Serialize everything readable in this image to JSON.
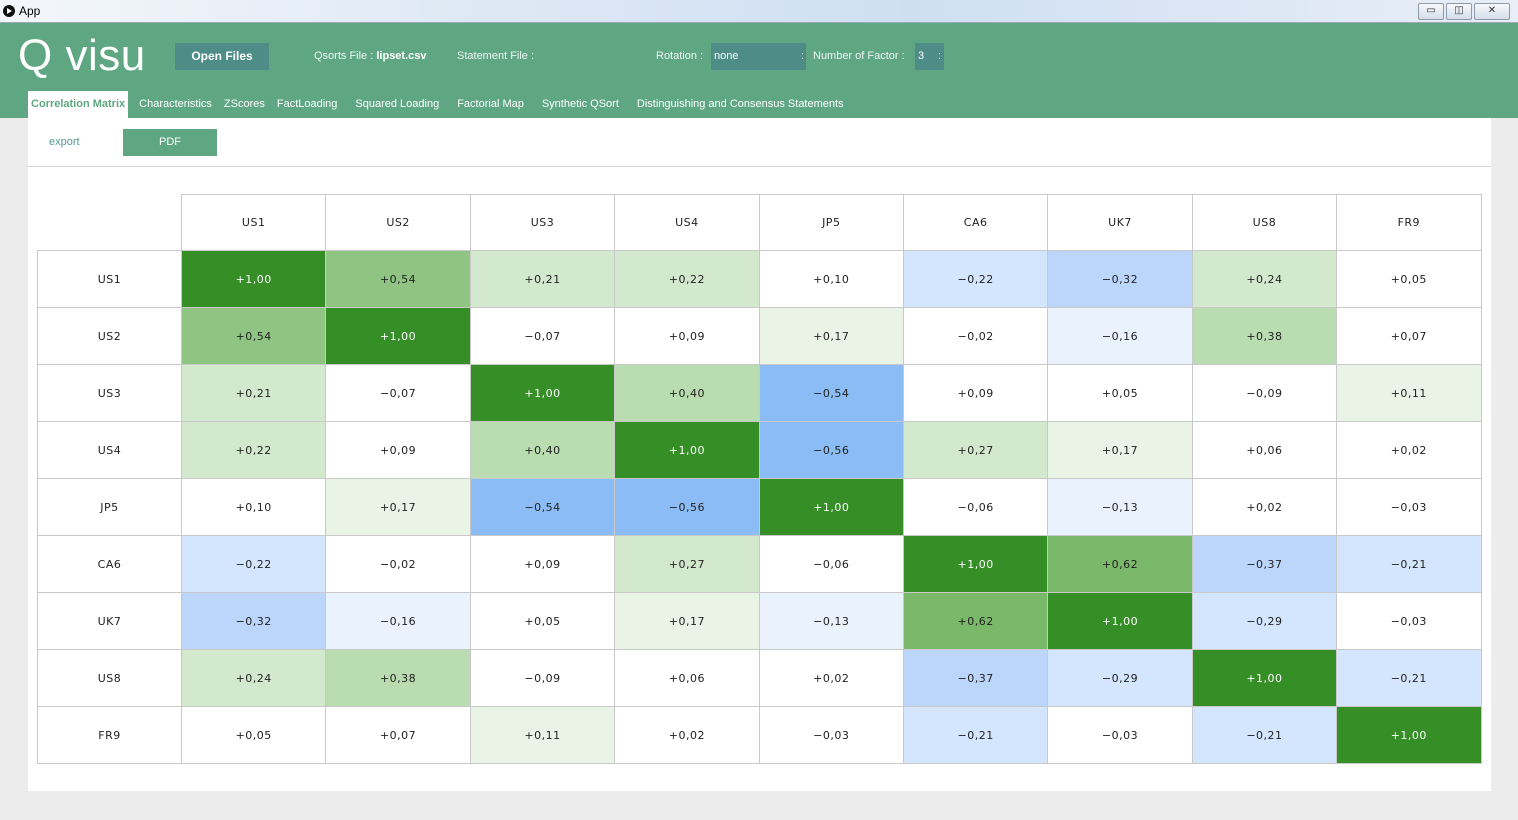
{
  "window": {
    "title": "App",
    "buttons": [
      "▭",
      "◫",
      "✕"
    ]
  },
  "header": {
    "logo": "Q visu",
    "open_files": "Open Files",
    "qsorts_label": "Qsorts File :",
    "qsorts_value": "lipset.csv",
    "statement_label": "Statement File :",
    "statement_value": "",
    "rotation_label": "Rotation :",
    "rotation_value": "none",
    "nfactor_label": "Number of Factor :",
    "nfactor_value": "3",
    "select_sep": ":"
  },
  "tabs": [
    "Correlation Matrix",
    "Characteristics",
    "ZScores",
    "FactLoading",
    "Squared Loading",
    "Factorial Map",
    "Synthetic QSort",
    "Distinguishing and Consensus Statements"
  ],
  "toolbar": {
    "export_label": "export",
    "pdf_label": "PDF"
  },
  "colors": {
    "header": "#5fa783",
    "button": "#4d8c87",
    "positive": "#358e26",
    "negative": "#8bbcf5"
  },
  "matrix": {
    "labels": [
      "US1",
      "US2",
      "US3",
      "US4",
      "JP5",
      "CA6",
      "UK7",
      "US8",
      "FR9"
    ],
    "values": [
      [
        1.0,
        0.54,
        0.21,
        0.22,
        0.1,
        -0.22,
        -0.32,
        0.24,
        0.05
      ],
      [
        0.54,
        1.0,
        -0.07,
        0.09,
        0.17,
        -0.02,
        -0.16,
        0.38,
        0.07
      ],
      [
        0.21,
        -0.07,
        1.0,
        0.4,
        -0.54,
        0.09,
        0.05,
        -0.09,
        0.11
      ],
      [
        0.22,
        0.09,
        0.4,
        1.0,
        -0.56,
        0.27,
        0.17,
        0.06,
        0.02
      ],
      [
        0.1,
        0.17,
        -0.54,
        -0.56,
        1.0,
        -0.06,
        -0.13,
        0.02,
        -0.03
      ],
      [
        -0.22,
        -0.02,
        0.09,
        0.27,
        -0.06,
        1.0,
        0.62,
        -0.37,
        -0.21
      ],
      [
        -0.32,
        -0.16,
        0.05,
        0.17,
        -0.13,
        0.62,
        1.0,
        -0.29,
        -0.03
      ],
      [
        0.24,
        0.38,
        -0.09,
        0.06,
        0.02,
        -0.37,
        -0.29,
        1.0,
        -0.21
      ],
      [
        0.05,
        0.07,
        0.11,
        0.02,
        -0.03,
        -0.21,
        -0.03,
        -0.21,
        1.0
      ]
    ]
  }
}
